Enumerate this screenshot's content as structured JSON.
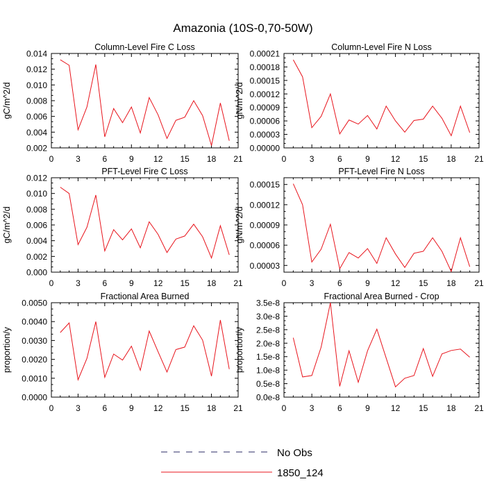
{
  "figure_title": "Amazonia (10S-0,70-50W)",
  "legend": {
    "entries": [
      {
        "label": "No Obs",
        "style": "dashed",
        "color": "#2a2a66"
      },
      {
        "label": "1850_124",
        "style": "solid",
        "color": "#e8141c"
      }
    ]
  },
  "chart_data": [
    {
      "type": "line",
      "title": "Column-Level Fire C Loss",
      "xlabel": "",
      "ylabel": "gC/m^2/d",
      "xlim": [
        0,
        21
      ],
      "ylim": [
        0.002,
        0.014
      ],
      "xticks": [
        0,
        3,
        6,
        9,
        12,
        15,
        18,
        21
      ],
      "yticks": [
        0.002,
        0.004,
        0.006,
        0.008,
        0.01,
        0.012,
        0.014
      ],
      "ytick_labels": [
        "0.002",
        "0.004",
        "0.006",
        "0.008",
        "0.010",
        "0.012",
        "0.014"
      ],
      "series": [
        {
          "name": "1850_124",
          "color": "#e8141c",
          "x": [
            1,
            2,
            3,
            4,
            5,
            6,
            7,
            8,
            9,
            10,
            11,
            12,
            13,
            14,
            15,
            16,
            17,
            18,
            19,
            20
          ],
          "values": [
            0.0132,
            0.0125,
            0.0043,
            0.0072,
            0.0126,
            0.0034,
            0.007,
            0.0052,
            0.0072,
            0.0039,
            0.0084,
            0.0062,
            0.0032,
            0.0055,
            0.0059,
            0.008,
            0.0061,
            0.0023,
            0.0077,
            0.0029
          ]
        }
      ]
    },
    {
      "type": "line",
      "title": "Column-Level Fire N Loss",
      "xlabel": "",
      "ylabel": "gN/m^2/d",
      "xlim": [
        0,
        21
      ],
      "ylim": [
        0,
        0.00021
      ],
      "xticks": [
        0,
        3,
        6,
        9,
        12,
        15,
        18,
        21
      ],
      "yticks": [
        0,
        3e-05,
        6e-05,
        9e-05,
        0.00012,
        0.00015,
        0.00018,
        0.00021
      ],
      "ytick_labels": [
        "0.00000",
        "0.00003",
        "0.00006",
        "0.00009",
        "0.00012",
        "0.00015",
        "0.00018",
        "0.00021"
      ],
      "series": [
        {
          "name": "1850_124",
          "color": "#e8141c",
          "x": [
            1,
            2,
            3,
            4,
            5,
            6,
            7,
            8,
            9,
            10,
            11,
            12,
            13,
            14,
            15,
            16,
            17,
            18,
            19,
            20
          ],
          "values": [
            0.000196,
            0.000158,
            4.5e-05,
            7e-05,
            0.00012,
            3.1e-05,
            6.2e-05,
            5.3e-05,
            7.2e-05,
            4.2e-05,
            9.3e-05,
            6e-05,
            3.5e-05,
            6.1e-05,
            6.4e-05,
            9.3e-05,
            6.6e-05,
            2.7e-05,
            9.3e-05,
            3.4e-05
          ]
        }
      ]
    },
    {
      "type": "line",
      "title": "PFT-Level Fire C Loss",
      "xlabel": "",
      "ylabel": "gC/m^2/d",
      "xlim": [
        0,
        21
      ],
      "ylim": [
        0,
        0.012
      ],
      "xticks": [
        0,
        3,
        6,
        9,
        12,
        15,
        18,
        21
      ],
      "yticks": [
        0,
        0.002,
        0.004,
        0.006,
        0.008,
        0.01,
        0.012
      ],
      "ytick_labels": [
        "0.000",
        "0.002",
        "0.004",
        "0.006",
        "0.008",
        "0.010",
        "0.012"
      ],
      "series": [
        {
          "name": "1850_124",
          "color": "#e8141c",
          "x": [
            1,
            2,
            3,
            4,
            5,
            6,
            7,
            8,
            9,
            10,
            11,
            12,
            13,
            14,
            15,
            16,
            17,
            18,
            19,
            20
          ],
          "values": [
            0.0108,
            0.01,
            0.0035,
            0.0057,
            0.0098,
            0.0027,
            0.0054,
            0.0041,
            0.0055,
            0.0031,
            0.0064,
            0.0048,
            0.0025,
            0.0042,
            0.0046,
            0.0061,
            0.0045,
            0.0018,
            0.0059,
            0.0022
          ]
        }
      ]
    },
    {
      "type": "line",
      "title": "PFT-Level Fire N Loss",
      "xlabel": "",
      "ylabel": "gN/m^2/d",
      "xlim": [
        0,
        21
      ],
      "ylim": [
        2e-05,
        0.00016
      ],
      "xticks": [
        0,
        3,
        6,
        9,
        12,
        15,
        18,
        21
      ],
      "yticks": [
        3e-05,
        6e-05,
        9e-05,
        0.00012,
        0.00015
      ],
      "ytick_labels": [
        "0.00003",
        "0.00006",
        "0.00009",
        "0.00012",
        "0.00015"
      ],
      "series": [
        {
          "name": "1850_124",
          "color": "#e8141c",
          "x": [
            1,
            2,
            3,
            4,
            5,
            6,
            7,
            8,
            9,
            10,
            11,
            12,
            13,
            14,
            15,
            16,
            17,
            18,
            19,
            20
          ],
          "values": [
            0.000151,
            0.00012,
            3.5e-05,
            5.4e-05,
            9.1e-05,
            2.5e-05,
            4.9e-05,
            4.1e-05,
            5.5e-05,
            3.3e-05,
            7.1e-05,
            4.7e-05,
            2.7e-05,
            4.8e-05,
            5.1e-05,
            7.1e-05,
            5.1e-05,
            2.1e-05,
            7.1e-05,
            2.8e-05
          ]
        }
      ]
    },
    {
      "type": "line",
      "title": "Fractional Area Burned",
      "xlabel": "",
      "ylabel": "proportion/y",
      "xlim": [
        0,
        21
      ],
      "ylim": [
        0,
        0.005
      ],
      "xticks": [
        0,
        3,
        6,
        9,
        12,
        15,
        18,
        21
      ],
      "yticks": [
        0,
        0.001,
        0.002,
        0.003,
        0.004,
        0.005
      ],
      "ytick_labels": [
        "0.0000",
        "0.0010",
        "0.0020",
        "0.0030",
        "0.0040",
        "0.0050"
      ],
      "series": [
        {
          "name": "1850_124",
          "color": "#e8141c",
          "x": [
            1,
            2,
            3,
            4,
            5,
            6,
            7,
            8,
            9,
            10,
            11,
            12,
            13,
            14,
            15,
            16,
            17,
            18,
            19,
            20
          ],
          "values": [
            0.00342,
            0.00393,
            0.00092,
            0.00205,
            0.004,
            0.00105,
            0.00228,
            0.00196,
            0.0027,
            0.00142,
            0.0035,
            0.0024,
            0.00133,
            0.00252,
            0.00265,
            0.00378,
            0.00302,
            0.00111,
            0.00408,
            0.00148
          ]
        }
      ]
    },
    {
      "type": "line",
      "title": "Fractional Area Burned - Crop",
      "xlabel": "",
      "ylabel": "proportion/y",
      "xlim": [
        0,
        21
      ],
      "ylim": [
        0,
        3.5e-08
      ],
      "xticks": [
        0,
        3,
        6,
        9,
        12,
        15,
        18,
        21
      ],
      "yticks": [
        0,
        5e-09,
        1e-08,
        1.5e-08,
        2e-08,
        2.5e-08,
        3e-08,
        3.5e-08
      ],
      "ytick_labels": [
        "0.0e-8",
        "0.5e-8",
        "1.0e-8",
        "1.5e-8",
        "2.0e-8",
        "2.5e-8",
        "3.0e-8",
        "3.5e-8"
      ],
      "series": [
        {
          "name": "1850_124",
          "color": "#e8141c",
          "x": [
            1,
            2,
            3,
            4,
            5,
            6,
            7,
            8,
            9,
            10,
            11,
            12,
            13,
            14,
            15,
            16,
            17,
            18,
            19,
            20
          ],
          "values": [
            2.2e-08,
            7.5e-09,
            8e-09,
            1.85e-08,
            3.5e-08,
            4e-09,
            1.72e-08,
            5.5e-09,
            1.72e-08,
            2.52e-08,
            1.45e-08,
            3.8e-09,
            7e-09,
            8e-09,
            1.8e-08,
            7.7e-09,
            1.6e-08,
            1.73e-08,
            1.78e-08,
            1.48e-08
          ]
        }
      ]
    }
  ]
}
